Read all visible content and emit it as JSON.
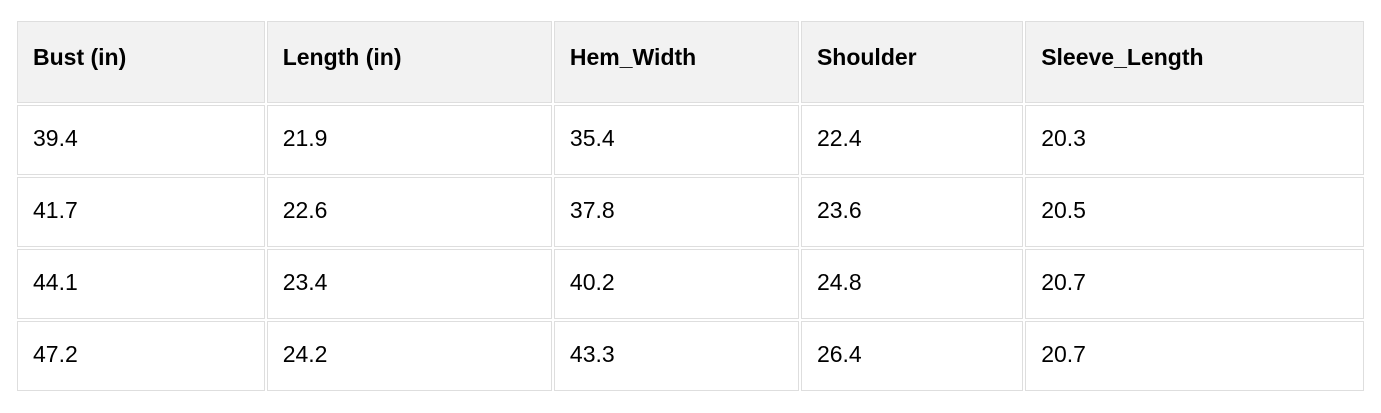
{
  "chart_data": {
    "type": "table",
    "columns": [
      "Bust (in)",
      "Length (in)",
      "Hem_Width",
      "Shoulder",
      "Sleeve_Length"
    ],
    "rows": [
      [
        "39.4",
        "21.9",
        "35.4",
        "22.4",
        "20.3"
      ],
      [
        "41.7",
        "22.6",
        "37.8",
        "23.6",
        "20.5"
      ],
      [
        "44.1",
        "23.4",
        "40.2",
        "24.8",
        "20.7"
      ],
      [
        "47.2",
        "24.2",
        "43.3",
        "26.4",
        "20.7"
      ]
    ],
    "layout": {
      "header_row": true,
      "grid": "all-cells-bordered",
      "text_align": "left"
    }
  },
  "colors": {
    "page_bg": "#ffffff",
    "header_bg": "#f2f2f2",
    "cell_bg": "#ffffff",
    "border": "#dedede",
    "text": "#000000"
  }
}
